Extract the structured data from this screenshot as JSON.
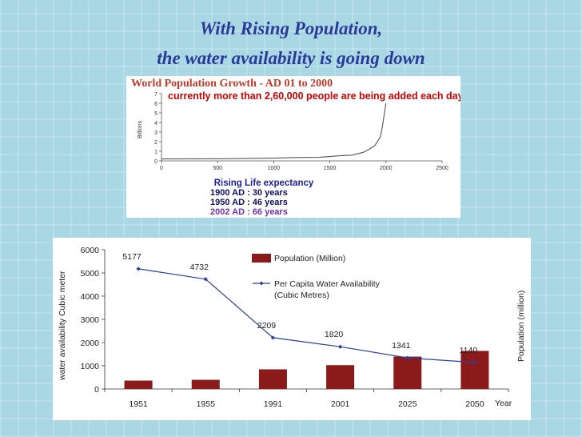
{
  "title": {
    "line1": "With Rising Population,",
    "line2": "the water availability is going down"
  },
  "chart_data": [
    {
      "type": "line",
      "title": "World Population Growth - AD 01 to 2000",
      "annotation": "currently more than 2,60,000 people are being added each day",
      "ylabel": "Billions",
      "xlabel": "",
      "x_ticks": [
        "0",
        "500",
        "1000",
        "1500",
        "2000",
        "2500"
      ],
      "y_ticks": [
        "0",
        "1",
        "2",
        "3",
        "4",
        "5",
        "6",
        "7"
      ],
      "xlim": [
        0,
        2500
      ],
      "ylim": [
        0,
        7
      ],
      "x": [
        0,
        500,
        1000,
        1200,
        1400,
        1500,
        1600,
        1700,
        1800,
        1850,
        1900,
        1950,
        1970,
        1990,
        2000
      ],
      "y": [
        0.2,
        0.22,
        0.28,
        0.35,
        0.37,
        0.45,
        0.55,
        0.6,
        0.9,
        1.2,
        1.6,
        2.5,
        3.7,
        5.3,
        6.0
      ],
      "color": "#555555",
      "life_expectancy": {
        "heading": "Rising Life expectancy",
        "lines": [
          "1900 AD : 30 years",
          "1950 AD : 46 years",
          "2002 AD : 66 years"
        ]
      },
      "colors": {
        "title": "#c0392b",
        "annotation": "#cc0000",
        "heading": "#2020a0",
        "line1": "#101060",
        "line2": "#101060",
        "line3": "#7030b0"
      }
    },
    {
      "type": "bar",
      "categories": [
        "1951",
        "1955",
        "1991",
        "2001",
        "2025",
        "2050"
      ],
      "x_unit": "Year",
      "ylabel": "water availability Cubic meter",
      "ylabel_right": "Population (million)",
      "y_ticks": [
        "0",
        "1000",
        "2000",
        "3000",
        "4000",
        "5000",
        "6000"
      ],
      "ylim": [
        0,
        6000
      ],
      "series": [
        {
          "name": "Population (Million)",
          "kind": "bar",
          "color": "#8b1a1a",
          "values": [
            361,
            395,
            846,
            1027,
            1394,
            1640
          ]
        },
        {
          "name": "Per Capita Water Availability (Cubic Metres)",
          "kind": "line",
          "color": "#2a3fa0",
          "values": [
            5177,
            4732,
            2209,
            1820,
            1341,
            1140
          ],
          "labels": [
            "5177",
            "4732",
            "2209",
            "1820",
            "1341",
            "1140"
          ]
        }
      ],
      "legend": {
        "bar_label": "Population (Million)",
        "line_label_1": "Per Capita Water Availability",
        "line_label_2": "(Cubic Metres)"
      }
    }
  ]
}
